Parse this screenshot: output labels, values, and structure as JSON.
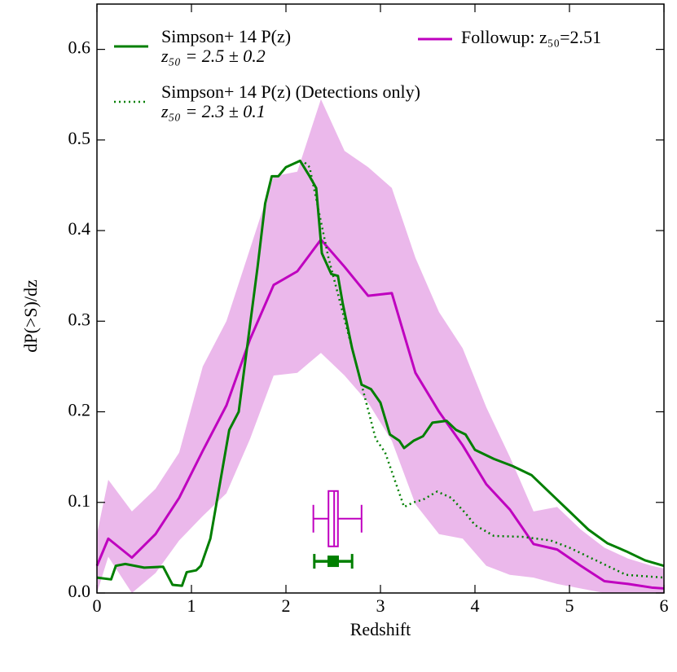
{
  "chart_data": {
    "type": "line",
    "xlabel": "Redshift",
    "ylabel": "dP(>S)/dz",
    "xlim": [
      0,
      6
    ],
    "ylim": [
      0,
      0.65
    ],
    "xticks": [
      0,
      1,
      2,
      3,
      4,
      5,
      6
    ],
    "yticks": [
      {
        "value": 0,
        "label": "0.0"
      },
      0.1,
      0.2,
      0.3,
      0.4,
      0.5,
      0.6
    ],
    "series": [
      {
        "name": "Followup: z₅₀=2.51",
        "color": "#bf00bf",
        "band_color": "#e9b0e9",
        "style": "solid",
        "x": [
          0,
          0.12,
          0.37,
          0.62,
          0.87,
          1.12,
          1.37,
          1.62,
          1.87,
          2.12,
          2.37,
          2.62,
          2.87,
          3.12,
          3.37,
          3.62,
          3.87,
          4.12,
          4.37,
          4.62,
          4.87,
          5.12,
          5.37,
          5.62,
          5.87,
          6
        ],
        "values": [
          0.03,
          0.06,
          0.039,
          0.065,
          0.105,
          0.157,
          0.207,
          0.28,
          0.34,
          0.355,
          0.39,
          0.36,
          0.328,
          0.331,
          0.243,
          0.2,
          0.163,
          0.12,
          0.092,
          0.054,
          0.048,
          0.03,
          0.013,
          0.01,
          0.006,
          0.005
        ],
        "upper": [
          0.065,
          0.125,
          0.09,
          0.115,
          0.155,
          0.25,
          0.3,
          0.38,
          0.46,
          0.465,
          0.545,
          0.488,
          0.47,
          0.447,
          0.37,
          0.31,
          0.27,
          0.205,
          0.15,
          0.09,
          0.095,
          0.07,
          0.05,
          0.038,
          0.03,
          0.027
        ],
        "lower": [
          0.0,
          0.04,
          0.0,
          0.022,
          0.058,
          0.085,
          0.11,
          0.17,
          0.24,
          0.243,
          0.265,
          0.24,
          0.21,
          0.168,
          0.098,
          0.065,
          0.06,
          0.03,
          0.02,
          0.017,
          0.01,
          0.005,
          0.0,
          0.0,
          0.0,
          0.0
        ]
      },
      {
        "name": "Simpson+ 14 P(z)",
        "sublabel": "z₅₀ = 2.5 ± 0.2",
        "color": "#007f00",
        "style": "solid",
        "x": [
          0,
          0.15,
          0.2,
          0.3,
          0.5,
          0.7,
          0.8,
          0.9,
          0.95,
          1.05,
          1.1,
          1.2,
          1.3,
          1.4,
          1.5,
          1.6,
          1.7,
          1.78,
          1.85,
          1.92,
          2.0,
          2.15,
          2.25,
          2.32,
          2.38,
          2.48,
          2.55,
          2.6,
          2.7,
          2.8,
          2.9,
          3.0,
          3.1,
          3.2,
          3.25,
          3.35,
          3.45,
          3.55,
          3.7,
          3.8,
          3.9,
          4.0,
          4.2,
          4.4,
          4.6,
          4.8,
          5.0,
          5.2,
          5.4,
          5.6,
          5.8,
          6.0
        ],
        "values": [
          0.017,
          0.015,
          0.03,
          0.032,
          0.028,
          0.029,
          0.009,
          0.008,
          0.023,
          0.025,
          0.03,
          0.06,
          0.12,
          0.18,
          0.2,
          0.28,
          0.36,
          0.43,
          0.46,
          0.46,
          0.47,
          0.477,
          0.46,
          0.447,
          0.375,
          0.352,
          0.35,
          0.32,
          0.27,
          0.23,
          0.225,
          0.21,
          0.175,
          0.168,
          0.16,
          0.168,
          0.173,
          0.188,
          0.19,
          0.18,
          0.175,
          0.158,
          0.148,
          0.14,
          0.13,
          0.11,
          0.09,
          0.07,
          0.055,
          0.046,
          0.036,
          0.03
        ]
      },
      {
        "name": "Simpson+ 14 P(z) (Detections only)",
        "sublabel": "z₅₀ = 2.3 ± 0.1",
        "color": "#007f00",
        "style": "dotted",
        "x": [
          2.2,
          2.25,
          2.35,
          2.45,
          2.6,
          2.75,
          2.85,
          2.95,
          3.05,
          3.15,
          3.25,
          3.35,
          3.45,
          3.6,
          3.75,
          3.9,
          4.0,
          4.2,
          4.5,
          4.8,
          5.0,
          5.3,
          5.6,
          6.0
        ],
        "values": [
          0.475,
          0.47,
          0.42,
          0.37,
          0.31,
          0.25,
          0.21,
          0.17,
          0.155,
          0.125,
          0.095,
          0.1,
          0.103,
          0.112,
          0.105,
          0.088,
          0.075,
          0.063,
          0.062,
          0.058,
          0.05,
          0.035,
          0.02,
          0.017
        ]
      }
    ],
    "boxplot": {
      "color": "#bf00bf",
      "y": 0.082,
      "whisker_low": 2.29,
      "q1": 2.45,
      "median": 2.51,
      "q3": 2.55,
      "whisker_high": 2.8
    },
    "errorbar": {
      "color": "#007f00",
      "y": 0.035,
      "value": 2.5,
      "error": 0.2
    }
  }
}
